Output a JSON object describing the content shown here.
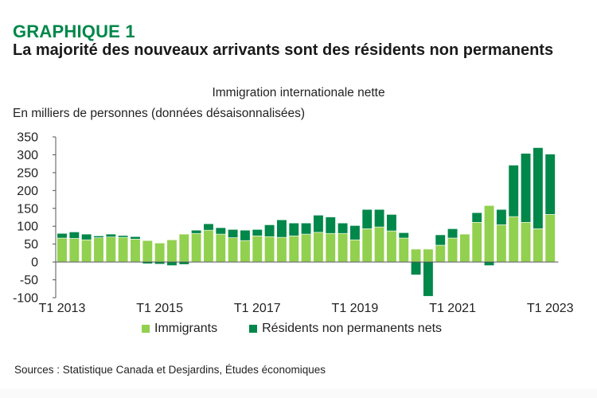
{
  "header": {
    "kicker": "GRAPHIQUE 1",
    "title": "La majorité des nouveaux arrivants sont des résidents non permanents"
  },
  "colors": {
    "immigrants": "#92d050",
    "npr": "#00874a",
    "kicker": "#00874a",
    "axis": "#555555"
  },
  "chart_data": {
    "type": "bar",
    "stacked": true,
    "title": "Immigration internationale nette",
    "ylabel": "En milliers de personnes (données désaisonnalisées)",
    "xlabel": "",
    "ylim": [
      -100,
      350
    ],
    "yticks": [
      -100,
      -50,
      0,
      50,
      100,
      150,
      200,
      250,
      300,
      350
    ],
    "xtick_labels": [
      {
        "index": 0,
        "label": "T1 2013"
      },
      {
        "index": 8,
        "label": "T1 2015"
      },
      {
        "index": 16,
        "label": "T1 2017"
      },
      {
        "index": 24,
        "label": "T1 2019"
      },
      {
        "index": 32,
        "label": "T1 2021"
      },
      {
        "index": 40,
        "label": "T1 2023"
      }
    ],
    "categories": [
      "T1 2013",
      "T2 2013",
      "T3 2013",
      "T4 2013",
      "T1 2014",
      "T2 2014",
      "T3 2014",
      "T4 2014",
      "T1 2015",
      "T2 2015",
      "T3 2015",
      "T4 2015",
      "T1 2016",
      "T2 2016",
      "T3 2016",
      "T4 2016",
      "T1 2017",
      "T2 2017",
      "T3 2017",
      "T4 2017",
      "T1 2018",
      "T2 2018",
      "T3 2018",
      "T4 2018",
      "T1 2019",
      "T2 2019",
      "T3 2019",
      "T4 2019",
      "T1 2020",
      "T2 2020",
      "T3 2020",
      "T4 2020",
      "T1 2021",
      "T2 2021",
      "T3 2021",
      "T4 2021",
      "T1 2022",
      "T2 2022",
      "T3 2022",
      "T4 2022",
      "T1 2023"
    ],
    "series": [
      {
        "name": "Immigrants",
        "values": [
          67,
          66,
          62,
          68,
          70,
          69,
          64,
          60,
          53,
          62,
          78,
          80,
          89,
          78,
          68,
          60,
          73,
          71,
          69,
          73,
          78,
          83,
          80,
          80,
          62,
          93,
          98,
          87,
          67,
          36,
          36,
          47,
          67,
          78,
          111,
          158,
          104,
          127,
          111,
          93,
          133
        ]
      },
      {
        "name": "Résidents non permanents nets",
        "values": [
          13,
          18,
          16,
          5,
          8,
          5,
          7,
          -5,
          -6,
          -10,
          -7,
          9,
          18,
          18,
          23,
          29,
          18,
          33,
          49,
          36,
          31,
          48,
          46,
          29,
          40,
          54,
          49,
          46,
          15,
          -36,
          -96,
          29,
          26,
          0,
          27,
          -10,
          43,
          144,
          193,
          227,
          169
        ]
      }
    ],
    "legend": [
      "Immigrants",
      "Résidents non permanents nets"
    ],
    "legend_position": "bottom",
    "grid": false
  },
  "source": "Sources : Statistique Canada et Desjardins, Études économiques"
}
